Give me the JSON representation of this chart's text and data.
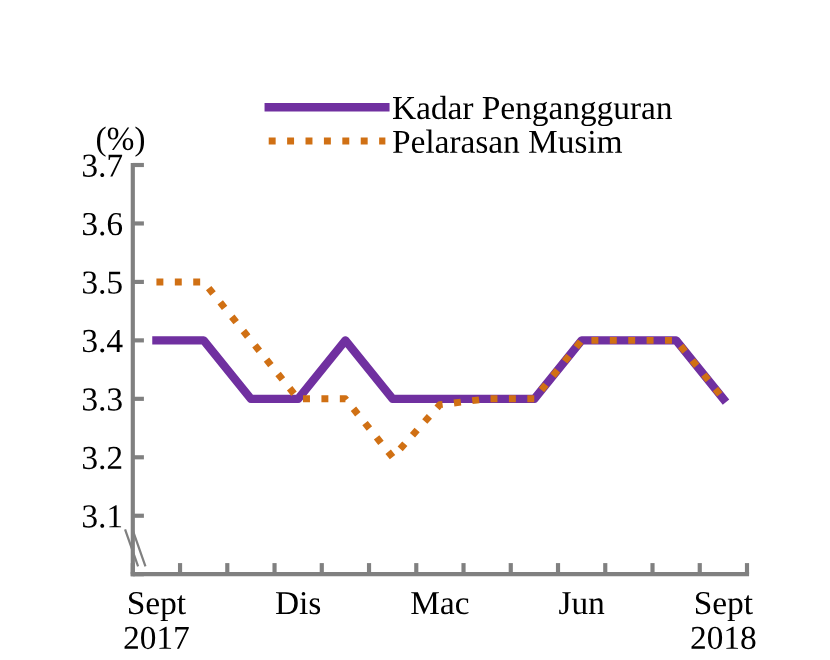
{
  "chart_data": {
    "type": "line",
    "ylabel": "(%)",
    "categories": [
      "Sept\n2017",
      null,
      null,
      "Dis",
      null,
      null,
      "Mac",
      null,
      null,
      "Jun",
      null,
      null,
      "Sept\n2018"
    ],
    "series": [
      {
        "name": "Kadar Pengangguran",
        "color": "#7030a0",
        "line_style": "solid",
        "values": [
          3.4,
          3.4,
          3.3,
          3.3,
          3.4,
          3.3,
          3.3,
          3.3,
          3.3,
          3.4,
          3.4,
          3.4,
          3.3
        ]
      },
      {
        "name": "Pelarasan Musim",
        "color": "#d07014",
        "line_style": "dotted",
        "values": [
          3.5,
          3.5,
          3.4,
          3.3,
          3.3,
          3.2,
          3.29,
          3.3,
          3.3,
          3.4,
          3.4,
          3.4,
          3.3
        ]
      }
    ],
    "ylim": [
      3.0,
      3.7
    ],
    "yticks": [
      {
        "value": 3.0,
        "label": null
      },
      3.1,
      3.2,
      3.3,
      3.4,
      3.5,
      3.6,
      3.7
    ],
    "grid": false,
    "legend": "top",
    "marker": "none"
  }
}
